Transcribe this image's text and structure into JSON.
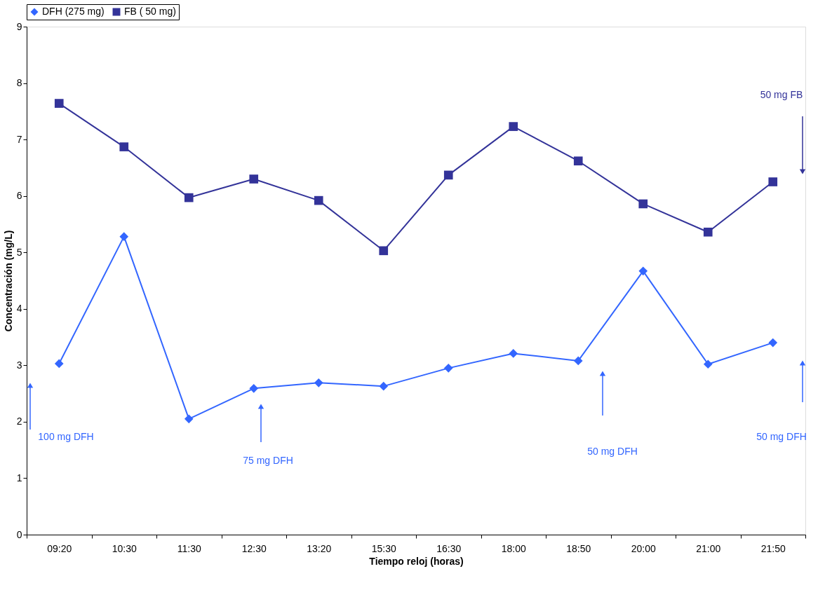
{
  "chart_data": {
    "type": "line",
    "xlabel": "Tiempo reloj (horas)",
    "ylabel": "Concentración (mg/L)",
    "categories": [
      "09:20",
      "10:30",
      "11:30",
      "12:30",
      "13:20",
      "15:30",
      "16:30",
      "18:00",
      "18:50",
      "20:00",
      "21:00",
      "21:50"
    ],
    "series": [
      {
        "name": "DFH (275 mg)",
        "color": "#3366ff",
        "marker": "diamond",
        "values": [
          3.03,
          5.28,
          2.05,
          2.59,
          2.69,
          2.63,
          2.95,
          3.21,
          3.08,
          4.67,
          3.02,
          3.4
        ]
      },
      {
        "name": "FB ( 50 mg)",
        "color": "#333399",
        "marker": "square",
        "values": [
          7.64,
          6.87,
          5.97,
          6.3,
          5.92,
          5.03,
          6.37,
          7.23,
          6.62,
          5.86,
          5.36,
          6.25
        ]
      }
    ],
    "ylim": [
      0,
      9
    ],
    "yticks": [
      0,
      1,
      2,
      3,
      4,
      5,
      6,
      7,
      8,
      9
    ],
    "grid": false,
    "legend": "top",
    "line_style": "solid",
    "annotations": [
      "50 mg FB",
      "100 mg DFH",
      "75 mg DFH",
      "50 mg DFH",
      "50 mg DFH"
    ]
  }
}
